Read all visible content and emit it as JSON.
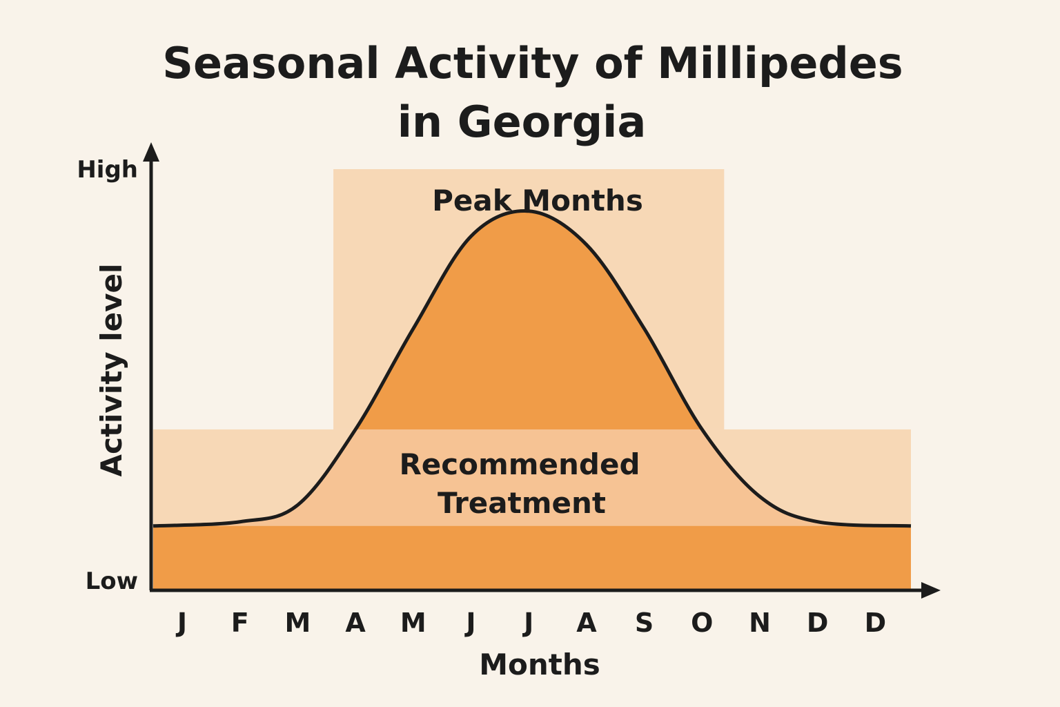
{
  "chart_data": {
    "type": "area",
    "title": [
      "Seasonal Activity of Millipedes",
      "in Georgia"
    ],
    "xlabel": "Months",
    "ylabel": "Activity level",
    "y_tick_labels": {
      "high": "High",
      "low": "Low"
    },
    "categories": [
      "J",
      "F",
      "M",
      "A",
      "M",
      "J",
      "J",
      "A",
      "S",
      "O",
      "N",
      "D",
      "D"
    ],
    "ylim": [
      0,
      1
    ],
    "series": [
      {
        "values": [
          0.15,
          0.16,
          0.2,
          0.38,
          0.62,
          0.84,
          0.9,
          0.82,
          0.62,
          0.38,
          0.22,
          0.16,
          0.15
        ],
        "color": "#f09c48"
      }
    ],
    "bands": [
      {
        "label": "Peak Months",
        "x_range": [
          "A",
          "O"
        ],
        "y_range": [
          0.38,
          1
        ],
        "color": "#f7d8b6"
      },
      {
        "label_lines": [
          "Recommended",
          "Treatment"
        ],
        "x_range": [
          "J",
          "D"
        ],
        "y_range": [
          0.15,
          0.38
        ],
        "color": "#f7d8b6"
      }
    ],
    "baseline_band": {
      "y_range": [
        0,
        0.15
      ],
      "color": "#f09c48"
    },
    "grid": false,
    "legend": "none"
  },
  "colors": {
    "background": "#f9f3ea",
    "band": "#f7d8b6",
    "fill": "#f09c48",
    "overlap": "#f6c394",
    "line": "#1c1c1c"
  }
}
